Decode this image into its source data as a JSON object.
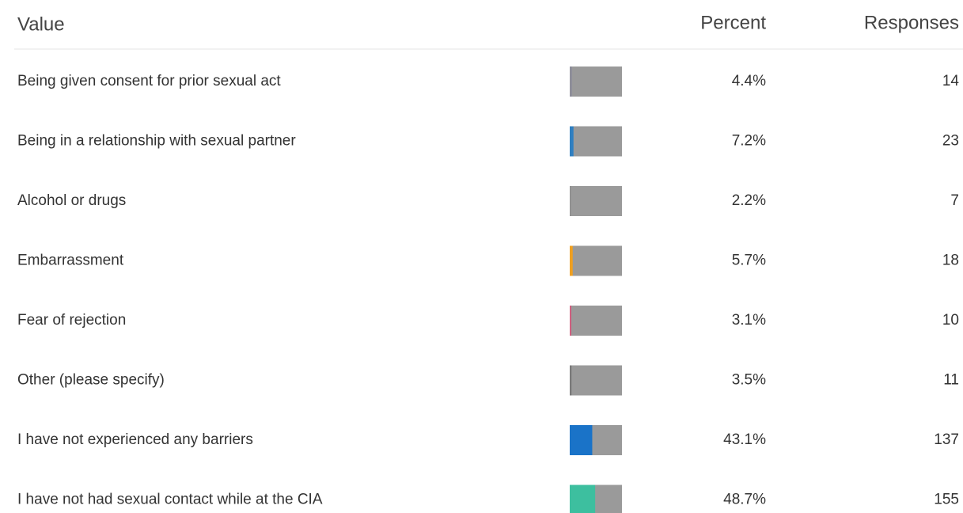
{
  "table": {
    "header": [
      "Value",
      "Percent",
      "Responses"
    ],
    "rows": [
      {
        "label": "Being given consent for prior sexual act",
        "percent": {
          "value": 4.4,
          "label": "4.4%"
        },
        "responses": 14,
        "color": "#8e8e9a"
      },
      {
        "label": "Being in a relationship with sexual partner",
        "percent": {
          "value": 7.2,
          "label": "7.2%"
        },
        "responses": 23,
        "color": "#2f7fc1"
      },
      {
        "label": "Alcohol or drugs",
        "percent": {
          "value": 2.2,
          "label": "2.2%"
        },
        "responses": 7,
        "color": "#8e8e8e"
      },
      {
        "label": "Embarrassment",
        "percent": {
          "value": 5.7,
          "label": "5.7%"
        },
        "responses": 18,
        "color": "#f0a020"
      },
      {
        "label": "Fear of rejection",
        "percent": {
          "value": 3.1,
          "label": "3.1%"
        },
        "responses": 10,
        "color": "#d06080"
      },
      {
        "label": "Other (please specify)",
        "percent": {
          "value": 3.5,
          "label": "3.5%"
        },
        "responses": 11,
        "color": "#7a7a7a"
      },
      {
        "label": "I have not experienced any barriers",
        "percent": {
          "value": 43.1,
          "label": "43.1%"
        },
        "responses": 137,
        "color": "#1a73c8"
      },
      {
        "label": "I have not had sexual contact while at the CIA",
        "percent": {
          "value": 48.7,
          "label": "48.7%"
        },
        "responses": 155,
        "color": "#3dbf9f"
      }
    ]
  }
}
